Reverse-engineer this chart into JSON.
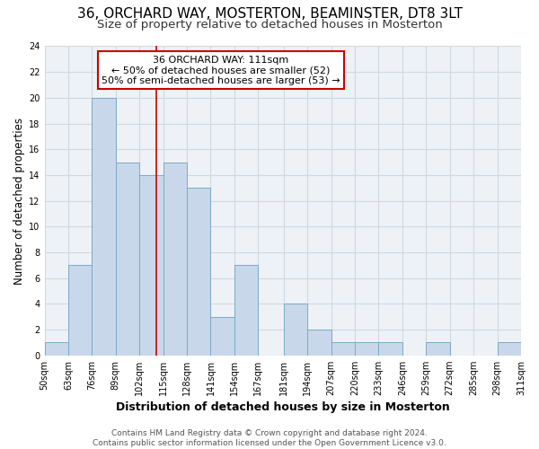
{
  "title1": "36, ORCHARD WAY, MOSTERTON, BEAMINSTER, DT8 3LT",
  "title2": "Size of property relative to detached houses in Mosterton",
  "xlabel": "Distribution of detached houses by size in Mosterton",
  "ylabel": "Number of detached properties",
  "bin_edges": [
    50,
    63,
    76,
    89,
    102,
    115,
    128,
    141,
    154,
    167,
    181,
    194,
    207,
    220,
    233,
    246,
    259,
    272,
    285,
    298,
    311
  ],
  "bar_heights": [
    1,
    7,
    20,
    15,
    14,
    15,
    13,
    3,
    7,
    0,
    4,
    2,
    1,
    1,
    1,
    0,
    1,
    0,
    0,
    1
  ],
  "bar_color": "#c8d8ea",
  "bar_edgecolor": "#7aaac8",
  "vline_x": 111,
  "vline_color": "#cc0000",
  "annotation_line1": "36 ORCHARD WAY: 111sqm",
  "annotation_line2": "← 50% of detached houses are smaller (52)",
  "annotation_line3": "50% of semi-detached houses are larger (53) →",
  "annotation_box_edgecolor": "#cc0000",
  "annotation_box_facecolor": "white",
  "ylim": [
    0,
    24
  ],
  "yticks": [
    0,
    2,
    4,
    6,
    8,
    10,
    12,
    14,
    16,
    18,
    20,
    22,
    24
  ],
  "tick_labels": [
    "50sqm",
    "63sqm",
    "76sqm",
    "89sqm",
    "102sqm",
    "115sqm",
    "128sqm",
    "141sqm",
    "154sqm",
    "167sqm",
    "181sqm",
    "194sqm",
    "207sqm",
    "220sqm",
    "233sqm",
    "246sqm",
    "259sqm",
    "272sqm",
    "285sqm",
    "298sqm",
    "311sqm"
  ],
  "footer1": "Contains HM Land Registry data © Crown copyright and database right 2024.",
  "footer2": "Contains public sector information licensed under the Open Government Licence v3.0.",
  "title1_fontsize": 11,
  "title2_fontsize": 9.5,
  "xlabel_fontsize": 9,
  "ylabel_fontsize": 8.5,
  "tick_fontsize": 7,
  "footer_fontsize": 6.5,
  "annotation_fontsize": 8,
  "grid_color": "#d0d8e0",
  "background_color": "#eef2f7"
}
